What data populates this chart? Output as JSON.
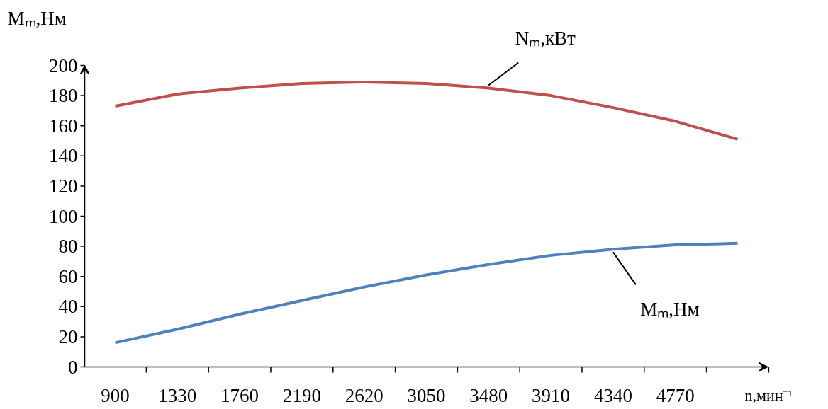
{
  "chart_data": {
    "type": "line",
    "ylabel": "Mₘ,Нм",
    "xlabel": "n,мин⁻¹",
    "categories": [
      "900",
      "1330",
      "1760",
      "2190",
      "2620",
      "3050",
      "3480",
      "3910",
      "4340",
      "4770",
      null
    ],
    "series": [
      {
        "color": "#c0504d",
        "values": [
          173,
          181,
          185,
          188,
          189,
          188,
          185,
          180,
          172,
          163,
          151
        ]
      },
      {
        "color": "#4f81bd",
        "values": [
          16,
          25,
          35,
          44,
          53,
          61,
          68,
          74,
          78,
          81,
          82
        ]
      }
    ],
    "annotations": [
      {
        "text": "Nₘ,кВт",
        "x": "3480",
        "y": 185
      },
      {
        "text": "Mₘ,Нм",
        "x": "4340",
        "y": 78
      }
    ],
    "ylim": [
      0,
      200
    ],
    "yticks": [
      0,
      20,
      40,
      60,
      80,
      100,
      120,
      140,
      160,
      180,
      200
    ],
    "grid": false,
    "marker": "none",
    "line_style": "solid"
  }
}
